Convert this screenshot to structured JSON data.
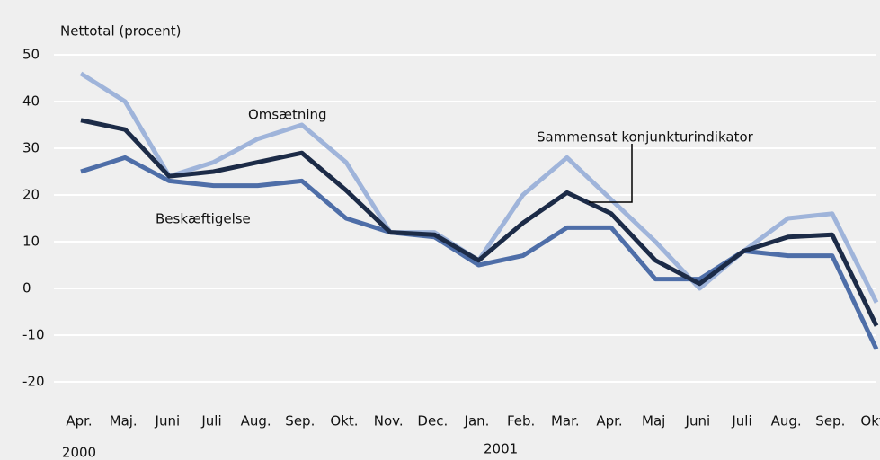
{
  "chart_data": {
    "type": "line",
    "y_axis_label": "Nettotal (procent)",
    "categories": [
      "Apr.",
      "Maj.",
      "Juni",
      "Juli",
      "Aug.",
      "Sep.",
      "Okt.",
      "Nov.",
      "Dec.",
      "Jan.",
      "Feb.",
      "Mar.",
      "Apr.",
      "Maj",
      "Juni",
      "Juli",
      "Aug.",
      "Sep.",
      "Okt."
    ],
    "year_labels": [
      "2000",
      "2001"
    ],
    "series": [
      {
        "name": "Omsætning",
        "color": "#9fb4da",
        "values": [
          46,
          40,
          24,
          27,
          32,
          35,
          27,
          12,
          12,
          6,
          20,
          28,
          19,
          10,
          0,
          8,
          15,
          16,
          -3
        ]
      },
      {
        "name": "Sammensat konjunkturindikator",
        "color": "#1c2b47",
        "values": [
          36,
          34,
          24,
          25,
          27,
          29,
          21,
          12,
          11.5,
          6,
          14,
          20.5,
          16,
          6,
          1,
          8,
          11,
          11.5,
          -8
        ]
      },
      {
        "name": "Beskæftigelse",
        "color": "#4e6ea8",
        "values": [
          25,
          28,
          23,
          22,
          22,
          23,
          15,
          12,
          11,
          5,
          7,
          13,
          13,
          2,
          2,
          8,
          7,
          7,
          -13
        ]
      }
    ],
    "ylim": [
      -20,
      50
    ],
    "yticks": [
      -20,
      -10,
      0,
      10,
      20,
      30,
      40,
      50
    ],
    "grid": true
  }
}
